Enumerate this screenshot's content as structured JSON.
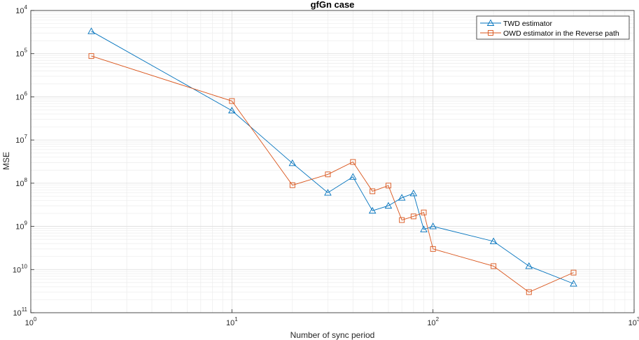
{
  "chart_data": {
    "type": "line",
    "title": "gfGn case",
    "xlabel": "Number of sync period",
    "ylabel": "MSE",
    "x_scale": "log",
    "y_scale": "log",
    "y_axis_reversed": true,
    "xlim": [
      1,
      1000
    ],
    "ylim": [
      0.0001,
      1e-11
    ],
    "grid": true,
    "minor_grid": true,
    "legend_position": "top-right",
    "x_ticks": [
      {
        "base": "10",
        "exp": "0",
        "value": 1
      },
      {
        "base": "10",
        "exp": "1",
        "value": 10
      },
      {
        "base": "10",
        "exp": "2",
        "value": 100
      },
      {
        "base": "10",
        "exp": "3",
        "value": 1000
      }
    ],
    "y_ticks": [
      {
        "base": "10",
        "exp": "4",
        "value": 0.0001
      },
      {
        "base": "10",
        "exp": "5",
        "value": 1e-05
      },
      {
        "base": "10",
        "exp": "6",
        "value": 1e-06
      },
      {
        "base": "10",
        "exp": "7",
        "value": 1e-07
      },
      {
        "base": "10",
        "exp": "8",
        "value": 1e-08
      },
      {
        "base": "10",
        "exp": "9",
        "value": 1e-09
      },
      {
        "base": "10",
        "exp": "10",
        "value": 1e-10
      },
      {
        "base": "10",
        "exp": "11",
        "value": 1e-11
      }
    ],
    "x": [
      2,
      10,
      20,
      30,
      40,
      50,
      60,
      70,
      80,
      90,
      100,
      200,
      300,
      500
    ],
    "series": [
      {
        "name": "TWD estimator",
        "color": "#0072BD",
        "marker": "triangle",
        "values": [
          3.3e-05,
          4.8e-07,
          2.9e-08,
          6e-09,
          1.4e-08,
          2.3e-09,
          3e-09,
          4.6e-09,
          5.8e-09,
          8.5e-10,
          1e-09,
          4.5e-10,
          1.2e-10,
          4.7e-11
        ]
      },
      {
        "name": "OWD estimator in the Reverse path",
        "color": "#D95319",
        "marker": "square",
        "values": [
          8.8e-06,
          8e-07,
          9e-09,
          1.6e-08,
          3.1e-08,
          6.5e-09,
          8.8e-09,
          1.4e-09,
          1.7e-09,
          2.1e-09,
          3e-10,
          1.2e-10,
          3e-11,
          8.5e-11
        ]
      }
    ]
  }
}
